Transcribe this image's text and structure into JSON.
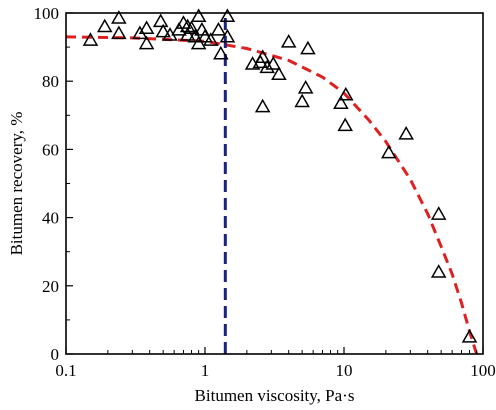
{
  "chart_data": {
    "type": "scatter",
    "title": "",
    "xlabel": "Bitumen viscosity, Pa·s",
    "ylabel": "Bitumen recovery, %",
    "xscale": "log",
    "xlim": [
      0.1,
      100
    ],
    "ylim": [
      0,
      100
    ],
    "xticks": [
      0.1,
      1,
      10,
      100
    ],
    "xtick_labels": [
      "0.1",
      "1",
      "10",
      "100"
    ],
    "yticks": [
      0,
      20,
      40,
      60,
      80,
      100
    ],
    "ytick_labels": [
      "0",
      "20",
      "40",
      "60",
      "80",
      "100"
    ],
    "grid": false,
    "legend": "none",
    "marker": "open-triangle",
    "colors": {
      "points": "#000000",
      "fit_curve": "#e02020",
      "threshold_line": "#1a237e",
      "axes": "#000000"
    },
    "points": [
      {
        "x": 0.15,
        "y": 92
      },
      {
        "x": 0.19,
        "y": 96
      },
      {
        "x": 0.24,
        "y": 98.5
      },
      {
        "x": 0.24,
        "y": 94
      },
      {
        "x": 0.34,
        "y": 94
      },
      {
        "x": 0.38,
        "y": 95.5
      },
      {
        "x": 0.38,
        "y": 91
      },
      {
        "x": 0.48,
        "y": 97.5
      },
      {
        "x": 0.5,
        "y": 94.5
      },
      {
        "x": 0.56,
        "y": 93.5
      },
      {
        "x": 0.65,
        "y": 95
      },
      {
        "x": 0.7,
        "y": 97
      },
      {
        "x": 0.75,
        "y": 93.5
      },
      {
        "x": 0.75,
        "y": 96
      },
      {
        "x": 0.8,
        "y": 95.5
      },
      {
        "x": 0.85,
        "y": 93
      },
      {
        "x": 0.9,
        "y": 99
      },
      {
        "x": 0.9,
        "y": 91
      },
      {
        "x": 0.95,
        "y": 95
      },
      {
        "x": 1.0,
        "y": 93
      },
      {
        "x": 1.1,
        "y": 92
      },
      {
        "x": 1.25,
        "y": 95
      },
      {
        "x": 1.3,
        "y": 88
      },
      {
        "x": 1.45,
        "y": 99
      },
      {
        "x": 1.45,
        "y": 93
      },
      {
        "x": 2.2,
        "y": 85
      },
      {
        "x": 2.5,
        "y": 85.5
      },
      {
        "x": 2.6,
        "y": 72.5
      },
      {
        "x": 2.6,
        "y": 87
      },
      {
        "x": 2.8,
        "y": 84
      },
      {
        "x": 3.1,
        "y": 85
      },
      {
        "x": 3.4,
        "y": 82
      },
      {
        "x": 4.0,
        "y": 91.5
      },
      {
        "x": 5.0,
        "y": 74
      },
      {
        "x": 5.3,
        "y": 78
      },
      {
        "x": 5.5,
        "y": 89.5
      },
      {
        "x": 9.5,
        "y": 73.5
      },
      {
        "x": 10.2,
        "y": 67
      },
      {
        "x": 10.3,
        "y": 76
      },
      {
        "x": 21,
        "y": 59
      },
      {
        "x": 28,
        "y": 64.5
      },
      {
        "x": 48,
        "y": 41
      },
      {
        "x": 48,
        "y": 24
      },
      {
        "x": 80,
        "y": 5
      }
    ],
    "fit_curve": {
      "x": [
        0.1,
        0.3,
        1,
        2,
        4,
        7,
        10,
        15,
        20,
        30,
        40,
        50,
        60,
        70,
        80,
        90,
        100
      ],
      "y": [
        93,
        92.7,
        91.7,
        89.6,
        86.1,
        81.2,
        76.5,
        68.7,
        62.3,
        51.2,
        41.1,
        31.5,
        23.4,
        15,
        6.7,
        0,
        -6
      ]
    },
    "threshold_line": {
      "x": 1.4,
      "y": [
        0,
        100
      ]
    }
  }
}
